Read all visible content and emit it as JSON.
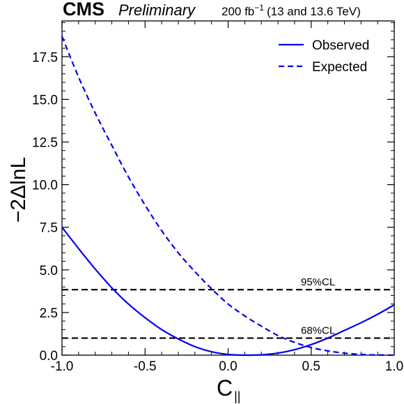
{
  "header": {
    "experiment": "CMS",
    "status": "Preliminary",
    "lumi_value": "200 fb",
    "lumi_exponent": "−1",
    "lumi_energy": "(13 and 13.6 TeV)"
  },
  "chart_data": {
    "type": "line",
    "xlabel": "C",
    "xlabel_sub": "||",
    "ylabel": "−2ΔlnL",
    "xlim": [
      -1.0,
      1.0
    ],
    "ylim": [
      0.0,
      19.6
    ],
    "x_ticks": [
      "-1.0",
      "-0.5",
      "0.0",
      "0.5",
      "1.0"
    ],
    "x_tick_values": [
      -1.0,
      -0.5,
      0.0,
      0.5,
      1.0
    ],
    "y_ticks": [
      "0.0",
      "2.5",
      "5.0",
      "7.5",
      "10.0",
      "12.5",
      "15.0",
      "17.5"
    ],
    "y_tick_values": [
      0.0,
      2.5,
      5.0,
      7.5,
      10.0,
      12.5,
      15.0,
      17.5
    ],
    "grid": false,
    "legend_position": "top-right",
    "series": [
      {
        "name": "Observed",
        "style": "solid",
        "color": "#0000ee",
        "x": [
          -1.0,
          -0.9,
          -0.8,
          -0.7,
          -0.6,
          -0.5,
          -0.4,
          -0.3,
          -0.2,
          -0.1,
          0.0,
          0.1,
          0.2,
          0.3,
          0.4,
          0.5,
          0.6,
          0.7,
          0.8,
          0.9,
          1.0
        ],
        "y": [
          7.5,
          6.25,
          5.05,
          3.95,
          3.0,
          2.2,
          1.5,
          0.95,
          0.5,
          0.2,
          0.04,
          0.0,
          0.02,
          0.12,
          0.32,
          0.62,
          1.0,
          1.45,
          1.9,
          2.4,
          2.95
        ]
      },
      {
        "name": "Expected",
        "style": "dashed",
        "color": "#0000ee",
        "x": [
          -1.0,
          -0.9,
          -0.8,
          -0.7,
          -0.6,
          -0.5,
          -0.4,
          -0.3,
          -0.2,
          -0.1,
          0.0,
          0.1,
          0.2,
          0.3,
          0.4,
          0.5,
          0.6,
          0.7,
          0.8,
          0.9,
          1.0
        ],
        "y": [
          18.7,
          16.3,
          14.2,
          12.3,
          10.45,
          8.8,
          7.3,
          6.0,
          4.9,
          3.9,
          3.0,
          2.3,
          1.7,
          1.15,
          0.75,
          0.45,
          0.25,
          0.12,
          0.04,
          0.01,
          0.0
        ]
      }
    ],
    "reference_lines": [
      {
        "label": "95%CL",
        "y": 3.84,
        "style": "dashed",
        "color": "#000000"
      },
      {
        "label": "68%CL",
        "y": 1.0,
        "style": "dashed",
        "color": "#000000"
      }
    ]
  }
}
